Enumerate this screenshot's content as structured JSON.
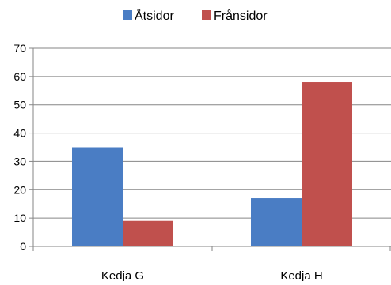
{
  "chart_data": {
    "type": "bar",
    "title": "",
    "xlabel": "",
    "ylabel": "",
    "categories": [
      "Kedja G",
      "Kedja H"
    ],
    "series": [
      {
        "name": "Åtsidor",
        "values": [
          35,
          17
        ],
        "color": "#4a7dc4"
      },
      {
        "name": "Frånsidor",
        "values": [
          9,
          58
        ],
        "color": "#c0504d"
      }
    ],
    "ylim": [
      0,
      70
    ],
    "yticks": [
      0,
      10,
      20,
      30,
      40,
      50,
      60,
      70
    ],
    "grid": true,
    "legend_position": "top"
  }
}
